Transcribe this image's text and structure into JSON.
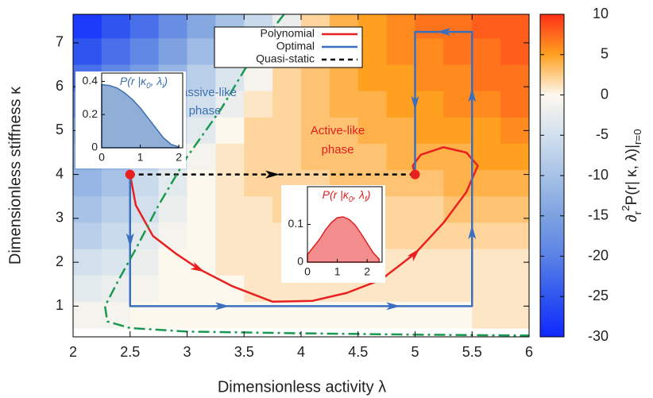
{
  "chart_data": {
    "type": "heatmap",
    "xlabel": "Dimensionless activity λ",
    "ylabel": "Dimensionless stiffness κ",
    "xlim": [
      2,
      6
    ],
    "ylim": [
      0.3,
      7.65
    ],
    "xticks": [
      2,
      2.5,
      3,
      3.5,
      4,
      4.5,
      5,
      5.5,
      6
    ],
    "yticks": [
      1,
      2,
      3,
      4,
      5,
      6,
      7
    ],
    "x": [
      2.125,
      2.375,
      2.625,
      2.875,
      3.125,
      3.375,
      3.625,
      3.875,
      4.125,
      4.375,
      4.625,
      4.875,
      5.125,
      5.375,
      5.625,
      5.875
    ],
    "y": [
      7.4,
      6.8,
      6.2,
      5.6,
      5.0,
      4.4,
      3.8,
      3.2,
      2.6,
      2.0,
      1.4,
      0.8
    ],
    "z": [
      [
        -28,
        -25,
        -22,
        -18,
        -14,
        -10,
        -6,
        -2,
        2,
        4,
        5,
        6,
        7,
        7,
        8,
        8
      ],
      [
        -25,
        -22,
        -19,
        -15,
        -11,
        -7,
        -3,
        0,
        3,
        4,
        5,
        6,
        6,
        7,
        7,
        8
      ],
      [
        -22,
        -19,
        -16,
        -12,
        -8,
        -4,
        -1,
        2,
        3,
        4,
        5,
        5,
        6,
        6,
        7,
        7
      ],
      [
        -19,
        -16,
        -13,
        -9,
        -5,
        -2,
        1,
        2,
        3,
        4,
        4,
        5,
        5,
        6,
        6,
        7
      ],
      [
        -16,
        -14,
        -10,
        -7,
        -3,
        0,
        2,
        2,
        3,
        3,
        4,
        4,
        5,
        5,
        5,
        6
      ],
      [
        -14,
        -12,
        -8,
        -5,
        -1,
        1,
        2,
        2,
        3,
        3,
        3,
        4,
        4,
        4,
        5,
        5
      ],
      [
        -12,
        -10,
        -6,
        -3,
        0,
        1,
        2,
        2,
        2,
        3,
        3,
        3,
        3,
        4,
        4,
        4
      ],
      [
        -10,
        -8,
        -5,
        -2,
        0,
        1,
        1,
        2,
        2,
        2,
        2,
        2,
        2,
        3,
        3,
        3
      ],
      [
        -8,
        -6,
        -3,
        -1,
        0,
        1,
        1,
        1,
        1,
        1,
        2,
        2,
        2,
        2,
        2,
        2
      ],
      [
        -5,
        -4,
        -2,
        0,
        0,
        1,
        1,
        1,
        1,
        1,
        1,
        1,
        1,
        1,
        1,
        1
      ],
      [
        -3,
        -2,
        -1,
        0,
        0,
        0,
        1,
        1,
        1,
        1,
        1,
        1,
        1,
        1,
        1,
        1
      ],
      [
        -1,
        -1,
        0,
        0,
        0,
        0,
        0,
        0,
        0,
        0,
        0,
        0,
        0,
        0,
        1,
        1
      ]
    ],
    "clim": [
      -30,
      10
    ],
    "cticks": [
      -30,
      -25,
      -20,
      -15,
      -10,
      -5,
      0,
      5,
      10
    ],
    "colorscale": [
      "#1028ff",
      "#2f55f0",
      "#5a82e6",
      "#7ea2e0",
      "#a6c2e6",
      "#d2e0ee",
      "#fdf8ee",
      "#ffa020",
      "#ff3018"
    ],
    "colorbar_label_parts": [
      {
        "text": "∂"
      },
      {
        "text": "r",
        "shift": "sub"
      },
      {
        "text": "2",
        "shift": "super"
      },
      {
        "text": "P(r| κ, λ)|"
      },
      {
        "text": "r=0",
        "shift": "sub"
      }
    ],
    "series": [
      {
        "name": "Polynomial",
        "color": "#e82020",
        "style": "solid",
        "x": [
          2.5,
          2.55,
          2.7,
          2.9,
          3.1,
          3.4,
          3.75,
          4.1,
          4.4,
          4.7,
          5.0,
          5.25,
          5.45,
          5.55,
          5.45,
          5.25,
          5.05,
          4.98,
          5
        ],
        "values": [
          4,
          3.3,
          2.6,
          2.2,
          1.85,
          1.45,
          1.1,
          1.12,
          1.3,
          1.6,
          2.2,
          2.9,
          3.6,
          4.2,
          4.5,
          4.62,
          4.45,
          4.2,
          4
        ]
      },
      {
        "name": "Optimal",
        "color": "#3a6fc0",
        "style": "solid",
        "x": [
          2.5,
          2.5,
          5.5,
          5.5,
          5,
          5
        ],
        "values": [
          4,
          1,
          1,
          7.25,
          7.25,
          4
        ]
      },
      {
        "name": "Quasi-static",
        "color": "#000000",
        "style": "dashed",
        "x": [
          2.5,
          5
        ],
        "values": [
          4,
          4
        ]
      },
      {
        "color": "#1a9a50",
        "style": "dashdot",
        "x": [
          3.85,
          3.6,
          3.3,
          3.0,
          2.75,
          2.55,
          2.4,
          2.28,
          2.3,
          2.5,
          3,
          4,
          5,
          6
        ],
        "values": [
          7.65,
          6.8,
          5.5,
          4.4,
          3.3,
          2.3,
          1.6,
          1.0,
          0.65,
          0.5,
          0.42,
          0.38,
          0.35,
          0.33
        ]
      }
    ],
    "annotations": [
      {
        "text": "Passive-like",
        "color": "#3a6fb0"
      },
      {
        "text": "phase",
        "color": "#3a6fb0"
      },
      {
        "text": "Active-like",
        "color": "#e02020"
      },
      {
        "text": "phase",
        "color": "#e02020"
      }
    ],
    "insets": [
      {
        "type": "area",
        "color": "#3a6fb0",
        "fill": "#7ea0d0",
        "title_parts": [
          {
            "text": "P(r |κ"
          },
          {
            "text": "0",
            "shift": "sub"
          },
          {
            "text": ", λ"
          },
          {
            "text": "i",
            "shift": "sub"
          },
          {
            "text": ")"
          }
        ],
        "xlim": [
          0,
          2.1
        ],
        "ylim": [
          0,
          0.45
        ],
        "xticks": [
          0,
          1,
          2
        ],
        "yticks": [
          0,
          0.2,
          0.4
        ],
        "x": [
          0,
          0.2,
          0.4,
          0.6,
          0.8,
          1.0,
          1.2,
          1.4,
          1.6,
          1.8,
          2.0
        ],
        "values": [
          0.38,
          0.375,
          0.36,
          0.33,
          0.29,
          0.24,
          0.18,
          0.12,
          0.06,
          0.02,
          0.005
        ]
      },
      {
        "type": "area",
        "color": "#e02020",
        "fill": "#f27a7a",
        "title_parts": [
          {
            "text": "P(r |κ"
          },
          {
            "text": "0",
            "shift": "sub"
          },
          {
            "text": ", λ"
          },
          {
            "text": "f",
            "shift": "sub"
          },
          {
            "text": ")"
          }
        ],
        "xlim": [
          0,
          2.5
        ],
        "ylim": [
          0,
          0.2
        ],
        "xticks": [
          0,
          1,
          2
        ],
        "yticks": [
          0,
          0.1
        ],
        "x": [
          0,
          0.2,
          0.4,
          0.6,
          0.8,
          1.0,
          1.2,
          1.4,
          1.6,
          1.8,
          2.0,
          2.2,
          2.4
        ],
        "values": [
          0.02,
          0.04,
          0.06,
          0.085,
          0.105,
          0.118,
          0.12,
          0.113,
          0.098,
          0.075,
          0.05,
          0.025,
          0.008
        ]
      }
    ]
  }
}
